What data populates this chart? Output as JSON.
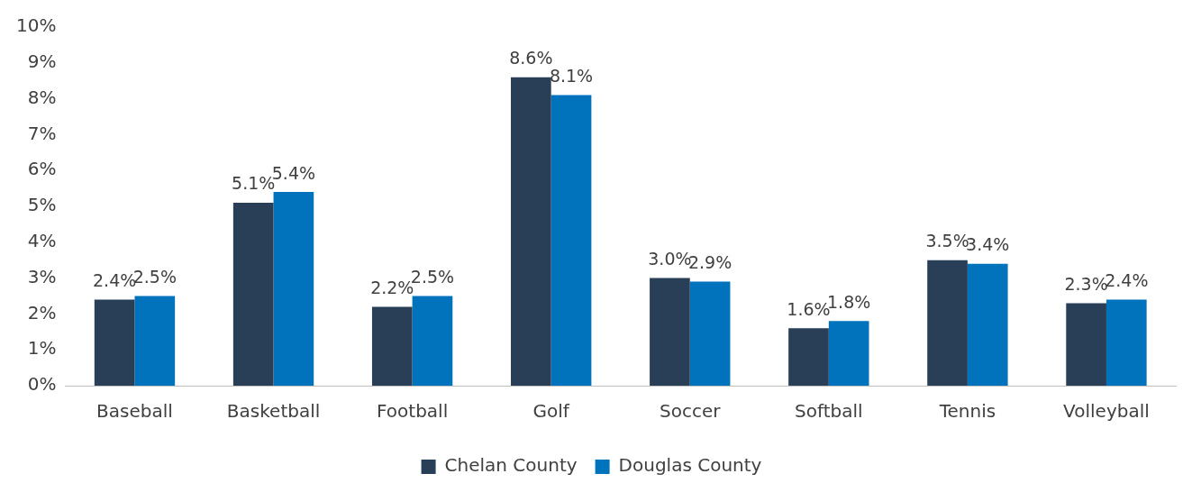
{
  "chart_data": {
    "type": "bar",
    "categories": [
      "Baseball",
      "Basketball",
      "Football",
      "Golf",
      "Soccer",
      "Softball",
      "Tennis",
      "Volleyball"
    ],
    "series": [
      {
        "name": "Chelan County",
        "color": "#293f58",
        "values": [
          2.4,
          5.1,
          2.2,
          8.6,
          3.0,
          1.6,
          3.5,
          2.3
        ],
        "value_labels": [
          "2.4%",
          "5.1%",
          "2.2%",
          "8.6%",
          "3.0%",
          "1.6%",
          "3.5%",
          "2.3%"
        ]
      },
      {
        "name": "Douglas County",
        "color": "#0073bd",
        "values": [
          2.5,
          5.4,
          2.5,
          8.1,
          2.9,
          1.8,
          3.4,
          2.4
        ],
        "value_labels": [
          "2.5%",
          "5.4%",
          "2.5%",
          "8.1%",
          "2.9%",
          "1.8%",
          "3.4%",
          "2.4%"
        ]
      }
    ],
    "ylim": [
      0,
      10
    ],
    "yticks": [
      {
        "value": 0,
        "label": "0%"
      },
      {
        "value": 1,
        "label": "1%"
      },
      {
        "value": 2,
        "label": "2%"
      },
      {
        "value": 3,
        "label": "3%"
      },
      {
        "value": 4,
        "label": "4%"
      },
      {
        "value": 5,
        "label": "5%"
      },
      {
        "value": 6,
        "label": "6%"
      },
      {
        "value": 7,
        "label": "7%"
      },
      {
        "value": 8,
        "label": "8%"
      },
      {
        "value": 9,
        "label": "9%"
      },
      {
        "value": 10,
        "label": "10%"
      }
    ],
    "grid": false,
    "legend": "bottom"
  }
}
